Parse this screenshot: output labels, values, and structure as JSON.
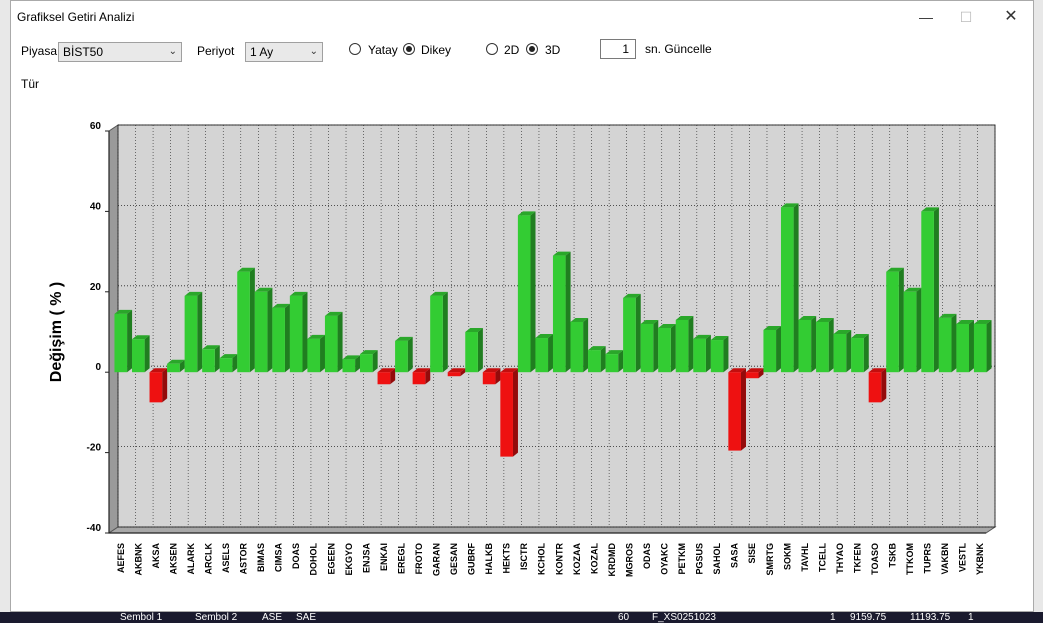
{
  "window": {
    "title": "Grafiksel Getiri Analizi"
  },
  "controls": {
    "piyasa_label": "Piyasa",
    "piyasa_value": "BİST50",
    "periyot_label": "Periyot",
    "periyot_value": "1 Ay",
    "orientation_options": [
      {
        "label": "Yatay",
        "selected": false
      },
      {
        "label": "Dikey",
        "selected": true
      }
    ],
    "dimension_options": [
      {
        "label": "2D",
        "selected": false
      },
      {
        "label": "3D",
        "selected": true
      }
    ],
    "refresh_value": "1",
    "refresh_label": "sn. Güncelle",
    "tur_label": "Tür"
  },
  "background_strip": [
    "Sembol 1",
    "Sembol 2",
    "ASE",
    "SAE",
    "60",
    "F_XS0251023",
    "1",
    "9159.75",
    "11193.75",
    "1"
  ],
  "colors": {
    "positive": "#33cc33",
    "negative": "#ee1111",
    "plot_bg": "#d4d4d4"
  },
  "chart_data": {
    "type": "bar",
    "title": "",
    "xlabel": "",
    "ylabel": "Değişim ( % )",
    "ylim": [
      -40,
      60
    ],
    "yticks": [
      60,
      40,
      20,
      0,
      -20,
      -40
    ],
    "grid": true,
    "style": "3d",
    "categories": [
      "AEFES",
      "AKBNK",
      "AKSA",
      "AKSEN",
      "ALARK",
      "ARCLK",
      "ASELS",
      "ASTOR",
      "BIMAS",
      "CIMSA",
      "DOAS",
      "DOHOL",
      "EGEEN",
      "EKGYO",
      "ENJSA",
      "ENKAI",
      "EREGL",
      "FROTO",
      "GARAN",
      "GESAN",
      "GUBRF",
      "HALKB",
      "HEKTS",
      "ISCTR",
      "KCHOL",
      "KONTR",
      "KOZAA",
      "KOZAL",
      "KRDMD",
      "MGROS",
      "ODAS",
      "OYAKC",
      "PETKM",
      "PGSUS",
      "SAHOL",
      "SASA",
      "SISE",
      "SMRTG",
      "SOKM",
      "TAVHL",
      "TCELL",
      "THYAO",
      "TKFEN",
      "TOASO",
      "TSKB",
      "TTKOM",
      "TUPRS",
      "VAKBN",
      "VESTL",
      "YKBNK"
    ],
    "values": [
      14.5,
      8.2,
      -7.5,
      2.1,
      19,
      5.7,
      3.5,
      25,
      20,
      16,
      19,
      8.3,
      14,
      3.2,
      4.5,
      -3,
      7.8,
      -3,
      19,
      -1,
      10,
      -3,
      -21,
      39,
      8.5,
      29,
      12.5,
      5.5,
      4.5,
      18.5,
      12,
      11,
      13,
      8.3,
      8,
      -19.5,
      -1.5,
      10.5,
      41,
      13,
      12.5,
      9.5,
      8.5,
      -7.5,
      25,
      20,
      40,
      13.5,
      12,
      12
    ]
  }
}
